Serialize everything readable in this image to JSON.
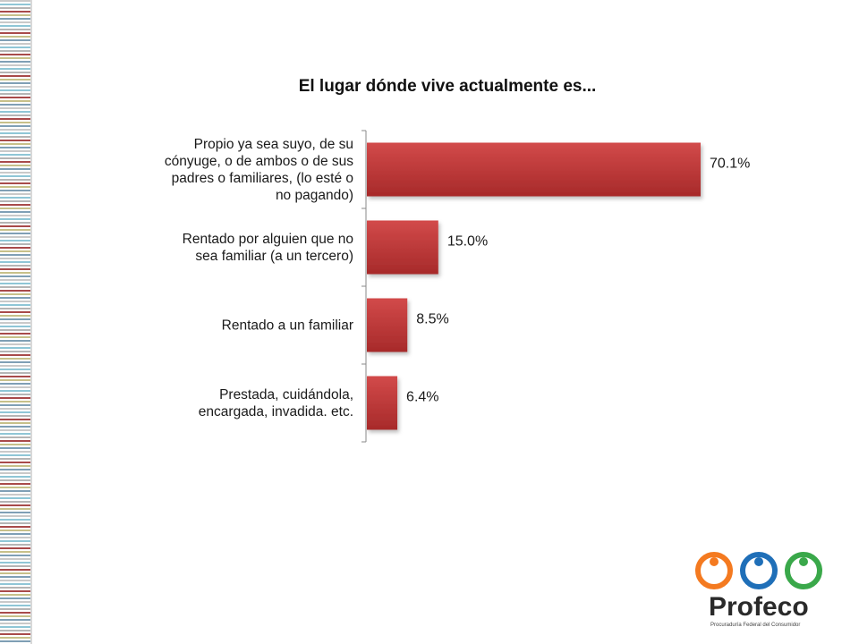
{
  "chart_data": {
    "type": "bar",
    "orientation": "horizontal",
    "title": "El lugar dónde vive actualmente es...",
    "categories": [
      [
        "Propio ya sea suyo, de su",
        "cónyuge, o de ambos o de sus",
        "padres o familiares, (lo esté o",
        "no pagando)"
      ],
      [
        "Rentado por alguien que no",
        "sea familiar (a un tercero)"
      ],
      [
        "Rentado a un familiar"
      ],
      [
        "Prestada, cuidándola,",
        "encargada, invadida. etc."
      ]
    ],
    "values": [
      70.1,
      15.0,
      8.5,
      6.4
    ],
    "value_labels": [
      "70.1%",
      "15.0%",
      "8.5%",
      "6.4%"
    ],
    "grid": false,
    "legend": "none",
    "bar_color": "#c23a3a"
  },
  "logo": {
    "name": "Profeco",
    "subtitle": "Procuraduría Federal del Consumidor",
    "colors": [
      "#f47a20",
      "#1f6fb8",
      "#3aa84a"
    ]
  }
}
